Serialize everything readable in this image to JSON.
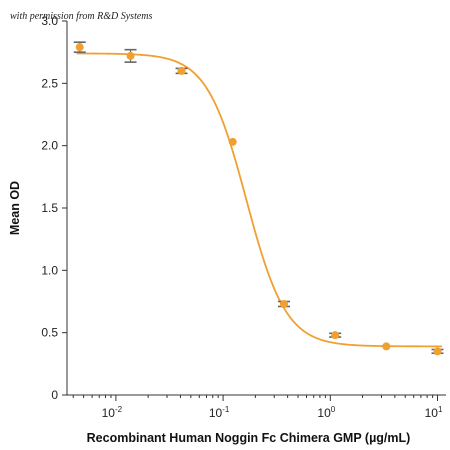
{
  "watermark": "with permission from R&D Systems",
  "chart_data": {
    "type": "scatter",
    "xlabel": "Recombinant Human Noggin Fc Chimera GMP (µg/mL)",
    "ylabel": "Mean OD",
    "xscale": "log",
    "xlim": [
      0.0035,
      12
    ],
    "ylim": [
      0,
      3.0
    ],
    "yticks": [
      0,
      0.5,
      1.0,
      1.5,
      2.0,
      2.5,
      3.0
    ],
    "ytick_labels": [
      "0",
      "0.5",
      "1.0",
      "1.5",
      "2.0",
      "2.5",
      "3.0"
    ],
    "xticks": [
      {
        "value": 0.01,
        "base": "10",
        "exp": "-2"
      },
      {
        "value": 0.1,
        "base": "10",
        "exp": "-1"
      },
      {
        "value": 1,
        "base": "10",
        "exp": "0"
      },
      {
        "value": 10,
        "base": "10",
        "exp": "1"
      }
    ],
    "grid": false,
    "colors": {
      "curve": "#f0a030",
      "marker": "#f0a030",
      "errorbar": "#666666",
      "axis": "#333333"
    },
    "points": [
      {
        "x": 0.0046,
        "y": 2.79,
        "err": 0.04
      },
      {
        "x": 0.0137,
        "y": 2.72,
        "err": 0.05
      },
      {
        "x": 0.041,
        "y": 2.6,
        "err": 0.02
      },
      {
        "x": 0.123,
        "y": 2.03,
        "err": 0
      },
      {
        "x": 0.37,
        "y": 0.73,
        "err": 0.02
      },
      {
        "x": 1.11,
        "y": 0.48,
        "err": 0.015
      },
      {
        "x": 3.33,
        "y": 0.39,
        "err": 0
      },
      {
        "x": 10.0,
        "y": 0.35,
        "err": 0.015
      }
    ],
    "fit": {
      "model": "4PL",
      "top": 2.74,
      "bottom": 0.39,
      "ec50": 0.165,
      "hill": 2.35
    }
  }
}
